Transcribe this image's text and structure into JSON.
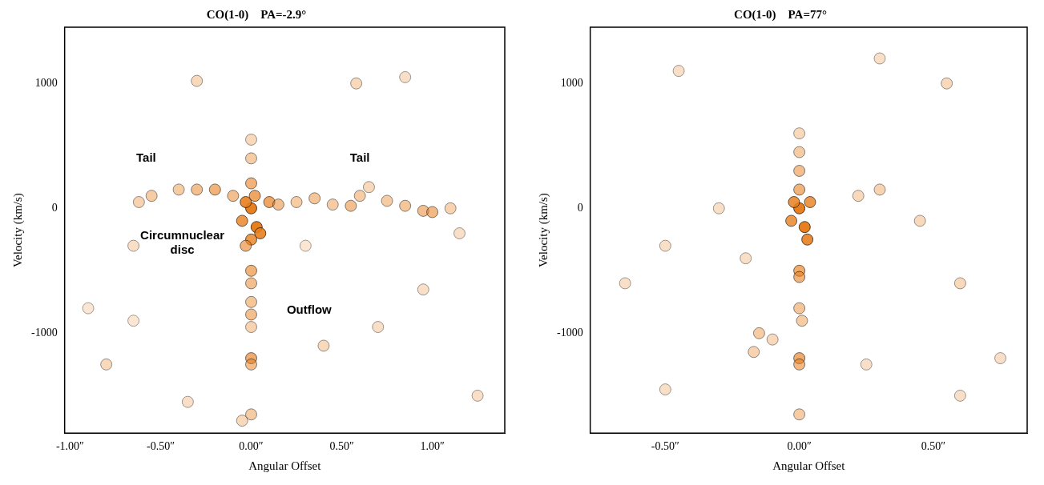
{
  "chart_data": [
    {
      "type": "scatter",
      "title": "CO(1-0)    PA=-2.9°",
      "x_label": "Angular Offset",
      "y_label": "Velocity (km/s)",
      "color": "#e8801f",
      "grid": false,
      "xlim": [
        -1.03,
        1.4
      ],
      "ylim": [
        -1800,
        1450
      ],
      "xticks": [
        {
          "value": -1,
          "label": "-1.00″"
        },
        {
          "value": -0.5,
          "label": "-0.50″"
        },
        {
          "value": 0,
          "label": "0.00″"
        },
        {
          "value": 0.5,
          "label": "0.50″"
        },
        {
          "value": 1,
          "label": "1.00″"
        }
      ],
      "yticks": [
        -1000,
        0,
        1000
      ],
      "x": [
        0,
        0.03,
        -0.03,
        0.05,
        0,
        -0.05,
        0.1,
        0.02,
        0,
        -0.03,
        -0.2,
        -0.3,
        -0.4,
        -0.55,
        -0.62,
        -0.1,
        0.15,
        0.25,
        0.35,
        0.45,
        0.55,
        0.6,
        0.65,
        0.75,
        0.85,
        0.95,
        1.0,
        1.1,
        1.15,
        0,
        0,
        0,
        0,
        0,
        0,
        0,
        0,
        -0.05,
        0,
        0,
        -0.3,
        0.58,
        0.85,
        -0.8,
        -0.65,
        0.4,
        0.7,
        1.25,
        -0.9,
        -0.35,
        0.95,
        -0.65,
        0.3
      ],
      "values": [
        0,
        -150,
        50,
        -200,
        -250,
        -100,
        50,
        100,
        200,
        -300,
        150,
        150,
        150,
        100,
        50,
        100,
        30,
        50,
        80,
        30,
        20,
        100,
        170,
        60,
        20,
        -20,
        -30,
        0,
        -200,
        -500,
        -600,
        -750,
        -850,
        -950,
        -1200,
        -1250,
        -1650,
        -1700,
        400,
        550,
        1020,
        1000,
        1050,
        -1250,
        -300,
        -1100,
        -950,
        -1500,
        -800,
        -1550,
        -650,
        -900,
        -300
      ],
      "intensity": [
        1,
        1,
        0.9,
        0.9,
        0.8,
        0.8,
        0.7,
        0.7,
        0.6,
        0.6,
        0.6,
        0.5,
        0.4,
        0.4,
        0.35,
        0.5,
        0.5,
        0.4,
        0.45,
        0.4,
        0.5,
        0.4,
        0.3,
        0.4,
        0.45,
        0.5,
        0.55,
        0.35,
        0.25,
        0.6,
        0.5,
        0.45,
        0.5,
        0.35,
        0.65,
        0.5,
        0.4,
        0.3,
        0.4,
        0.3,
        0.3,
        0.3,
        0.25,
        0.3,
        0.25,
        0.3,
        0.25,
        0.25,
        0.2,
        0.25,
        0.25,
        0.2,
        0.2
      ],
      "annotations": [
        {
          "text": "Tail",
          "x": -0.58,
          "y": 400
        },
        {
          "text": "Tail",
          "x": 0.6,
          "y": 400
        },
        {
          "text": "Circumnuclear disc",
          "x": -0.38,
          "y": -280
        },
        {
          "text": "Outflow",
          "x": 0.32,
          "y": -820
        }
      ]
    },
    {
      "type": "scatter",
      "title": "CO(1-0)    PA=77°",
      "x_label": "Angular Offset",
      "y_label": "Velocity (km/s)",
      "color": "#e8801f",
      "grid": false,
      "xlim": [
        -0.78,
        0.85
      ],
      "ylim": [
        -1800,
        1450
      ],
      "xticks": [
        {
          "value": -0.5,
          "label": "-0.50″"
        },
        {
          "value": 0,
          "label": "0.00″"
        },
        {
          "value": 0.5,
          "label": "0.50″"
        }
      ],
      "yticks": [
        -1000,
        0,
        1000
      ],
      "x": [
        0,
        0.02,
        0.03,
        -0.02,
        0.04,
        -0.03,
        0,
        0,
        0,
        0,
        0,
        0,
        0,
        0.01,
        0,
        0,
        0,
        -0.15,
        -0.17,
        -0.1,
        0.3,
        0.22,
        -0.3,
        0.45,
        -0.5,
        0.6,
        -0.65,
        0.55,
        -0.45,
        0.3,
        -0.2,
        0.75,
        0.25,
        -0.5,
        0.6
      ],
      "values": [
        0,
        -150,
        -250,
        50,
        50,
        -100,
        150,
        300,
        450,
        600,
        -500,
        -550,
        -800,
        -900,
        -1200,
        -1250,
        -1650,
        -1000,
        -1150,
        -1050,
        150,
        100,
        0,
        -100,
        -300,
        -600,
        -600,
        1000,
        1100,
        1200,
        -400,
        -1200,
        -1250,
        -1450,
        -1500
      ],
      "intensity": [
        1,
        1,
        0.9,
        0.85,
        0.8,
        0.8,
        0.6,
        0.5,
        0.4,
        0.3,
        0.65,
        0.6,
        0.45,
        0.4,
        0.65,
        0.55,
        0.4,
        0.4,
        0.35,
        0.3,
        0.35,
        0.3,
        0.25,
        0.3,
        0.25,
        0.3,
        0.25,
        0.3,
        0.25,
        0.25,
        0.25,
        0.25,
        0.25,
        0.25,
        0.25
      ],
      "annotations": []
    }
  ]
}
